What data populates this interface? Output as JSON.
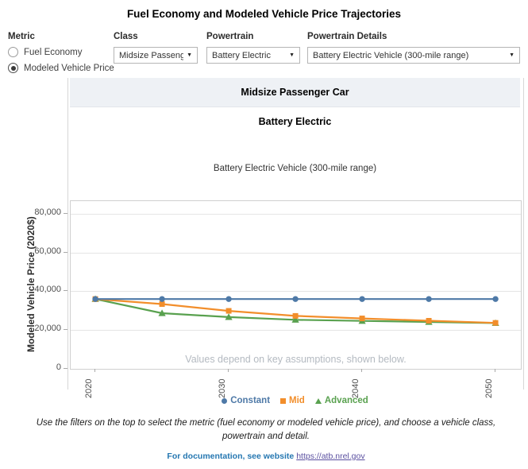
{
  "title": "Fuel Economy and Modeled Vehicle Price Trajectories",
  "filters": {
    "metric": {
      "label": "Metric",
      "options": [
        {
          "label": "Fuel Economy",
          "selected": false
        },
        {
          "label": "Modeled Vehicle Price",
          "selected": true
        }
      ]
    },
    "class": {
      "label": "Class",
      "value": "Midsize Passenger ..."
    },
    "powertrain": {
      "label": "Powertrain",
      "value": "Battery Electric"
    },
    "powertrain_details": {
      "label": "Powertrain Details",
      "value": "Battery Electric Vehicle (300-mile range)"
    }
  },
  "panel": {
    "class_header": "Midsize Passenger Car",
    "powertrain_header": "Battery Electric",
    "detail_header": "Battery Electric Vehicle (300-mile range)"
  },
  "chart_data": {
    "type": "line",
    "ylabel": "Modeled Vehicle Price (2020$)",
    "xlabel": "",
    "x": [
      2020,
      2025,
      2030,
      2035,
      2040,
      2045,
      2050
    ],
    "x_ticks": [
      2020,
      2030,
      2040,
      2050
    ],
    "y_ticks": [
      {
        "value": 0,
        "label": "0"
      },
      {
        "value": 20000,
        "label": "20,000"
      },
      {
        "value": 40000,
        "label": "40,000"
      },
      {
        "value": 60000,
        "label": "60,000"
      },
      {
        "value": 80000,
        "label": "80,000"
      }
    ],
    "ylim": [
      0,
      86500
    ],
    "xlim": [
      2018.15,
      2051.9
    ],
    "grid": true,
    "legend_position": "bottom",
    "annotation": "Values depend on key assumptions, shown below.",
    "series": [
      {
        "name": "Constant",
        "color": "#4e79a7",
        "marker": "circle",
        "values": [
          36000,
          36000,
          36000,
          36000,
          36000,
          36000,
          36000
        ]
      },
      {
        "name": "Mid",
        "color": "#f28e2b",
        "marker": "square",
        "values": [
          36000,
          33400,
          29900,
          27300,
          26000,
          24800,
          23700
        ]
      },
      {
        "name": "Advanced",
        "color": "#59a14f",
        "marker": "triangle",
        "values": [
          36000,
          28700,
          26700,
          25300,
          24700,
          24200,
          23600
        ]
      }
    ]
  },
  "footer": {
    "instructions": "Use the filters on the top to select the metric (fuel economy or modeled vehicle price), and choose a vehicle class, powertrain and detail.",
    "doc_text": "For documentation, see website",
    "doc_link": "https://atb.nrel.gov"
  },
  "colors": {
    "constant": "#4e79a7",
    "mid": "#f28e2b",
    "advanced": "#59a14f",
    "header_band": "#eef1f5",
    "doc_blue": "#2577b1"
  }
}
